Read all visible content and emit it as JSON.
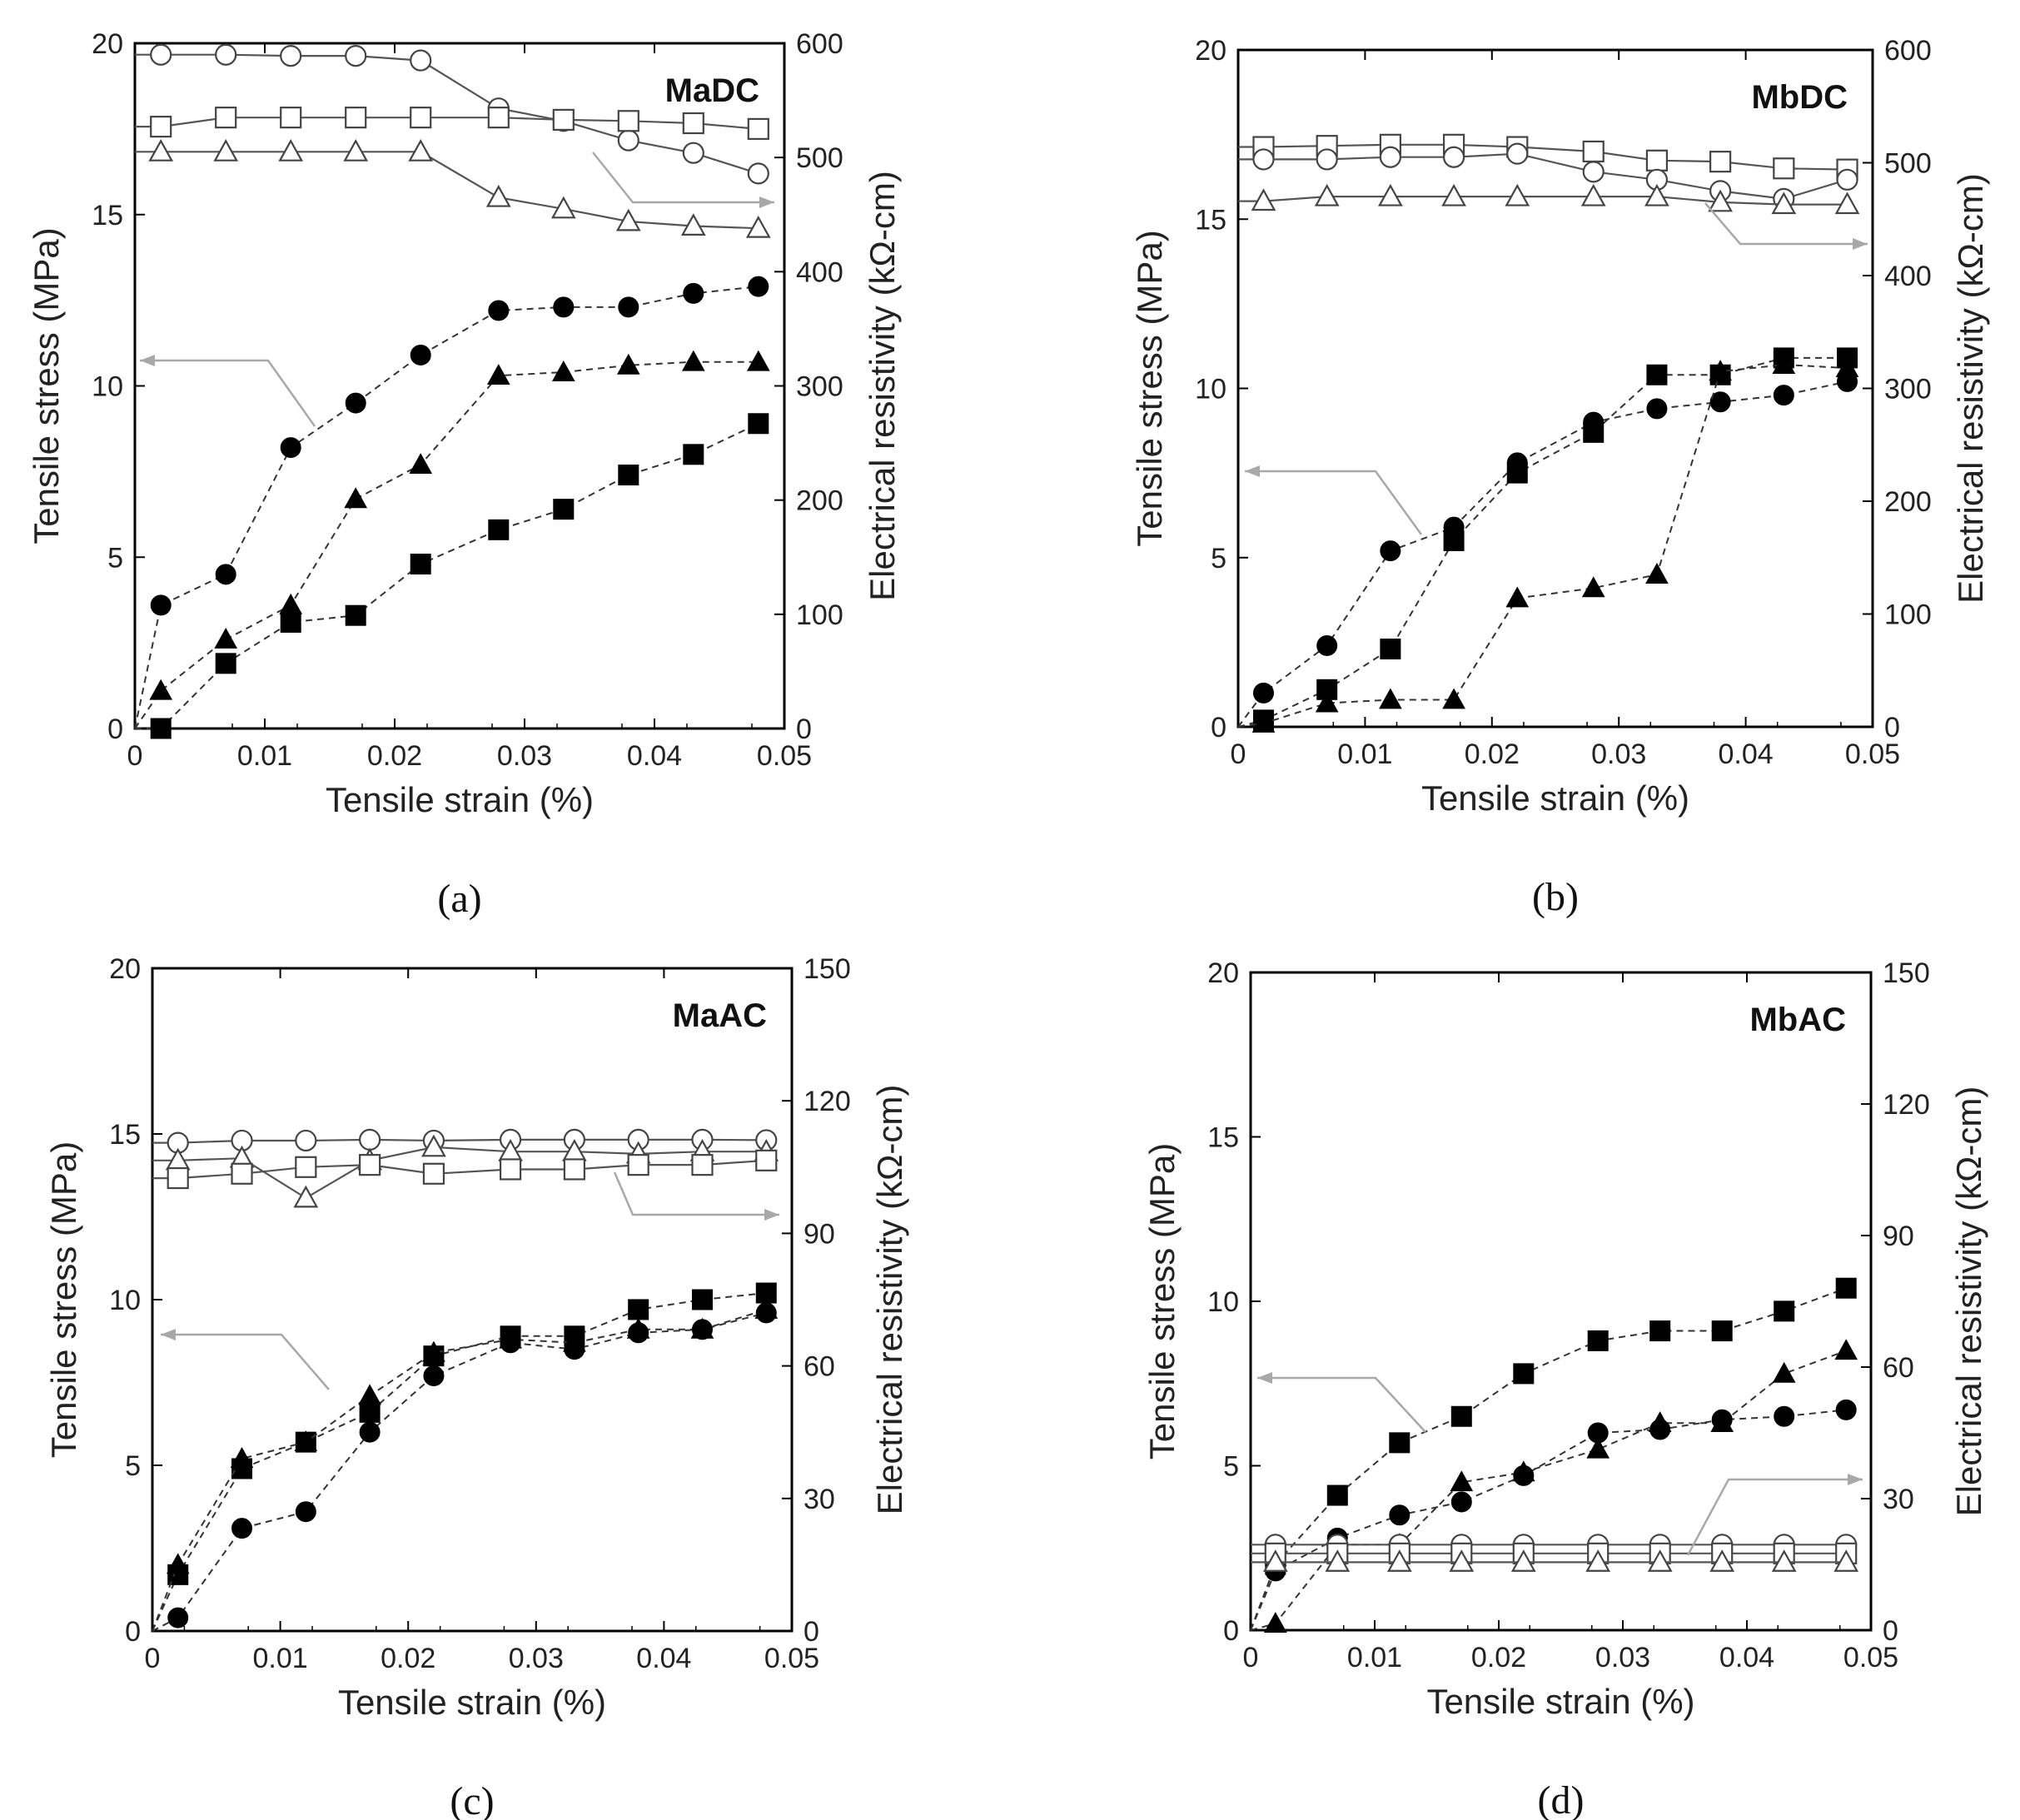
{
  "chart_data": [
    {
      "type": "scatter",
      "title": "MaDC",
      "caption": "(a)",
      "xlabel": "Tensile strain (%)",
      "ylabel": "Tensile stress (MPa)",
      "y2label": "Electrical resistivity (kΩ-cm)",
      "xlim": [
        0,
        0.05
      ],
      "ylim": [
        0,
        20
      ],
      "y2lim": [
        0,
        600
      ],
      "xticks": [
        "0",
        "0.01",
        "0.02",
        "0.03",
        "0.04",
        "0.05"
      ],
      "yticks": [
        "0",
        "5",
        "10",
        "15",
        "20"
      ],
      "y2ticks": [
        "0",
        "100",
        "200",
        "300",
        "400",
        "500",
        "600"
      ],
      "x": [
        0.002,
        0.007,
        0.012,
        0.017,
        0.022,
        0.028,
        0.033,
        0.038,
        0.043,
        0.048
      ],
      "series": [
        {
          "marker": "circle-filled",
          "axis": "stress",
          "values": [
            3.6,
            4.5,
            8.2,
            9.5,
            10.9,
            12.2,
            12.3,
            12.3,
            12.7,
            12.9
          ]
        },
        {
          "marker": "triangle-filled",
          "axis": "stress",
          "values": [
            1.1,
            2.6,
            3.6,
            6.7,
            7.7,
            10.3,
            10.4,
            10.6,
            10.7,
            10.7
          ]
        },
        {
          "marker": "square-filled",
          "axis": "stress",
          "values": [
            0.0,
            1.9,
            3.1,
            3.3,
            4.8,
            5.8,
            6.4,
            7.4,
            8.0,
            8.9
          ]
        },
        {
          "marker": "circle-open",
          "axis": "resistivity",
          "values": [
            590,
            590,
            589,
            589,
            585,
            543,
            532,
            515,
            504,
            486
          ]
        },
        {
          "marker": "square-open",
          "axis": "resistivity",
          "values": [
            527,
            535,
            535,
            535,
            535,
            535,
            533,
            532,
            530,
            525
          ]
        },
        {
          "marker": "triangle-open",
          "axis": "resistivity",
          "values": [
            505,
            505,
            505,
            505,
            505,
            465,
            455,
            444,
            440,
            438
          ]
        }
      ]
    },
    {
      "type": "scatter",
      "title": "MbDC",
      "caption": "(b)",
      "xlabel": "Tensile strain (%)",
      "ylabel": "Tensile stress (MPa)",
      "y2label": "Electrical resistivity (kΩ-cm)",
      "xlim": [
        0,
        0.05
      ],
      "ylim": [
        0,
        20
      ],
      "y2lim": [
        0,
        600
      ],
      "xticks": [
        "0",
        "0.01",
        "0.02",
        "0.03",
        "0.04",
        "0.05"
      ],
      "yticks": [
        "0",
        "5",
        "10",
        "15",
        "20"
      ],
      "y2ticks": [
        "0",
        "100",
        "200",
        "300",
        "400",
        "500",
        "600"
      ],
      "x": [
        0.002,
        0.007,
        0.012,
        0.017,
        0.022,
        0.028,
        0.033,
        0.038,
        0.043,
        0.048
      ],
      "series": [
        {
          "marker": "circle-filled",
          "axis": "stress",
          "values": [
            1.0,
            2.4,
            5.2,
            5.9,
            7.8,
            9.0,
            9.4,
            9.6,
            9.8,
            10.2
          ]
        },
        {
          "marker": "square-filled",
          "axis": "stress",
          "values": [
            0.2,
            1.1,
            2.3,
            5.5,
            7.5,
            8.7,
            10.4,
            10.4,
            10.9,
            10.9
          ]
        },
        {
          "marker": "triangle-filled",
          "axis": "stress",
          "values": [
            0.1,
            0.7,
            0.8,
            0.8,
            3.8,
            4.1,
            4.5,
            10.5,
            10.7,
            10.6
          ]
        },
        {
          "marker": "square-open",
          "axis": "resistivity",
          "values": [
            514,
            515,
            516,
            516,
            514,
            510,
            502,
            501,
            495,
            494
          ]
        },
        {
          "marker": "circle-open",
          "axis": "resistivity",
          "values": [
            503,
            503,
            505,
            505,
            508,
            492,
            485,
            475,
            468,
            485
          ]
        },
        {
          "marker": "triangle-open",
          "axis": "resistivity",
          "values": [
            466,
            470,
            470,
            470,
            470,
            470,
            470,
            465,
            463,
            463
          ]
        }
      ]
    },
    {
      "type": "scatter",
      "title": "MaAC",
      "caption": "(c)",
      "xlabel": "Tensile strain (%)",
      "ylabel": "Tensile stress (MPa)",
      "y2label": "Electrical resistivity (kΩ-cm)",
      "xlim": [
        0,
        0.05
      ],
      "ylim": [
        0,
        20
      ],
      "y2lim": [
        0,
        150
      ],
      "xticks": [
        "0",
        "0.01",
        "0.02",
        "0.03",
        "0.04",
        "0.05"
      ],
      "yticks": [
        "0",
        "5",
        "10",
        "15",
        "20"
      ],
      "y2ticks": [
        "0",
        "30",
        "60",
        "90",
        "120",
        "150"
      ],
      "x": [
        0.002,
        0.007,
        0.012,
        0.017,
        0.022,
        0.028,
        0.033,
        0.038,
        0.043,
        0.048
      ],
      "series": [
        {
          "marker": "square-filled",
          "axis": "stress",
          "values": [
            1.7,
            4.9,
            5.7,
            6.6,
            8.3,
            8.9,
            8.9,
            9.7,
            10.0,
            10.2
          ]
        },
        {
          "marker": "triangle-filled",
          "axis": "stress",
          "values": [
            2.0,
            5.2,
            5.7,
            7.1,
            8.4,
            8.8,
            8.7,
            9.1,
            9.1,
            9.7
          ]
        },
        {
          "marker": "circle-filled",
          "axis": "stress",
          "values": [
            0.4,
            3.1,
            3.6,
            6.0,
            7.7,
            8.7,
            8.5,
            9.0,
            9.1,
            9.6
          ]
        },
        {
          "marker": "circle-open",
          "axis": "resistivity",
          "values": [
            110.5,
            111,
            111,
            111.2,
            111,
            111.2,
            111.2,
            111.2,
            111.2,
            111.1
          ]
        },
        {
          "marker": "triangle-open",
          "axis": "resistivity",
          "values": [
            106.5,
            107,
            98,
            106.5,
            109.5,
            108.5,
            108.5,
            108,
            108.5,
            108.5
          ]
        },
        {
          "marker": "square-open",
          "axis": "resistivity",
          "values": [
            102.5,
            103.5,
            105,
            105.5,
            103.5,
            104.5,
            104.5,
            105.5,
            105.5,
            106.5
          ]
        }
      ]
    },
    {
      "type": "scatter",
      "title": "MbAC",
      "caption": "(d)",
      "xlabel": "Tensile strain (%)",
      "ylabel": "Tensile stress (MPa)",
      "y2label": "Electrical resistivity (kΩ-cm)",
      "xlim": [
        0,
        0.05
      ],
      "ylim": [
        0,
        20
      ],
      "y2lim": [
        0,
        150
      ],
      "xticks": [
        "0",
        "0.01",
        "0.02",
        "0.03",
        "0.04",
        "0.05"
      ],
      "yticks": [
        "0",
        "5",
        "10",
        "15",
        "20"
      ],
      "y2ticks": [
        "0",
        "30",
        "60",
        "90",
        "120",
        "150"
      ],
      "x": [
        0.002,
        0.007,
        0.012,
        0.017,
        0.022,
        0.028,
        0.033,
        0.038,
        0.043,
        0.048
      ],
      "series": [
        {
          "marker": "square-filled",
          "axis": "stress",
          "values": [
            2.0,
            4.1,
            5.7,
            6.5,
            7.8,
            8.8,
            9.1,
            9.1,
            9.7,
            10.4
          ]
        },
        {
          "marker": "triangle-filled",
          "axis": "stress",
          "values": [
            0.2,
            2.6,
            2.6,
            4.5,
            4.8,
            5.5,
            6.3,
            6.3,
            7.8,
            8.5
          ]
        },
        {
          "marker": "circle-filled",
          "axis": "stress",
          "values": [
            1.8,
            2.8,
            3.5,
            3.9,
            4.7,
            6.0,
            6.1,
            6.4,
            6.5,
            6.7
          ]
        },
        {
          "marker": "circle-open",
          "axis": "resistivity",
          "values": [
            19.5,
            19.5,
            19.5,
            19.5,
            19.5,
            19.5,
            19.5,
            19.5,
            19.5,
            19.5
          ]
        },
        {
          "marker": "square-open",
          "axis": "resistivity",
          "values": [
            17.5,
            17.5,
            17.5,
            17.5,
            17.5,
            17.5,
            17.5,
            17.5,
            17.5,
            17.5
          ]
        },
        {
          "marker": "triangle-open",
          "axis": "resistivity",
          "values": [
            15.5,
            15.5,
            15.5,
            15.5,
            15.5,
            15.5,
            15.5,
            15.5,
            15.5,
            15.5
          ]
        }
      ]
    }
  ]
}
